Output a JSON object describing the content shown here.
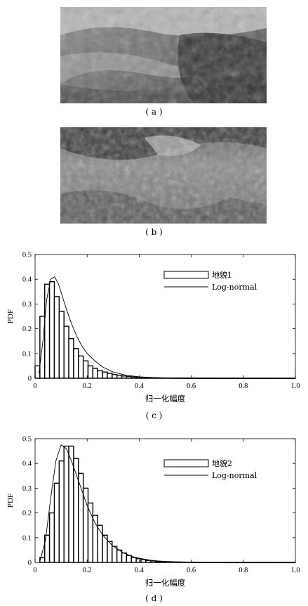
{
  "photos": [
    {
      "caption": "( a )"
    },
    {
      "caption": "( b )"
    }
  ],
  "chart_data": [
    {
      "type": "bar",
      "caption": "( c )",
      "ylabel": "PDF",
      "xlabel": "归一化幅度",
      "xlim": [
        0,
        1.0
      ],
      "ylim": [
        0,
        0.5
      ],
      "xticks": [
        "0",
        "0.2",
        "0.4",
        "0.6",
        "0.8",
        "1.0"
      ],
      "yticks": [
        "0",
        "0.1",
        "0.2",
        "0.3",
        "0.4",
        "0.5"
      ],
      "legend_position": "top-right",
      "series": [
        {
          "name": "地貌1",
          "kind": "histogram",
          "bin_width": 0.0185,
          "values": [
            0.05,
            0.25,
            0.38,
            0.39,
            0.33,
            0.27,
            0.21,
            0.16,
            0.12,
            0.09,
            0.07,
            0.05,
            0.04,
            0.03,
            0.025,
            0.02,
            0.015,
            0.012,
            0.009,
            0.007,
            0.005,
            0.004,
            0.003,
            0.002,
            0.0015,
            0.001,
            0.001,
            0.001,
            0.0008,
            0.0007,
            0.0006,
            0.0005,
            0.0005,
            0.0004,
            0.0004,
            0.0003,
            0.0003,
            0.0003,
            0.0002,
            0.0002,
            0.0002,
            0.0002,
            0.0002,
            0.0001,
            0.0001,
            0.0001,
            0.0001,
            0.0001,
            0.0001,
            0.0001,
            0.0001,
            0.0001,
            0.0001,
            0.0001
          ]
        },
        {
          "name": "Log-normal",
          "kind": "line",
          "x": [
            0.015,
            0.03,
            0.045,
            0.06,
            0.075,
            0.09,
            0.105,
            0.12,
            0.14,
            0.16,
            0.18,
            0.2,
            0.23,
            0.26,
            0.3,
            0.35,
            0.4,
            0.45,
            0.5,
            0.6,
            0.7,
            0.8,
            0.9,
            1.0
          ],
          "y": [
            0.02,
            0.15,
            0.32,
            0.4,
            0.41,
            0.38,
            0.33,
            0.28,
            0.22,
            0.17,
            0.13,
            0.1,
            0.07,
            0.045,
            0.025,
            0.012,
            0.006,
            0.003,
            0.0015,
            0.0005,
            0.0002,
            0.0001,
            0.0,
            0.0
          ]
        }
      ]
    },
    {
      "type": "bar",
      "caption": "( d )",
      "ylabel": "PDF",
      "xlabel": "归一化幅度",
      "xlim": [
        0,
        1.0
      ],
      "ylim": [
        0,
        0.5
      ],
      "xticks": [
        "0",
        "0.2",
        "0.4",
        "0.6",
        "0.8",
        "1.0"
      ],
      "yticks": [
        "0",
        "0.1",
        "0.2",
        "0.3",
        "0.4",
        "0.5"
      ],
      "legend_position": "top-right",
      "series": [
        {
          "name": "地貌2",
          "kind": "histogram",
          "bin_width": 0.0185,
          "values": [
            0.0,
            0.02,
            0.11,
            0.2,
            0.32,
            0.41,
            0.47,
            0.47,
            0.42,
            0.36,
            0.3,
            0.24,
            0.19,
            0.15,
            0.11,
            0.085,
            0.065,
            0.05,
            0.038,
            0.028,
            0.02,
            0.015,
            0.011,
            0.008,
            0.006,
            0.004,
            0.003,
            0.002,
            0.0015,
            0.001,
            0.001,
            0.0008,
            0.0006,
            0.0005,
            0.0004,
            0.0003,
            0.0003,
            0.0002,
            0.0002,
            0.0002,
            0.0001,
            0.0001,
            0.0001,
            0.0001,
            0.0001,
            0.0001,
            0.0001,
            0.0001,
            0.0001,
            0.0001,
            0.0001,
            0.0001,
            0.0001,
            0.0001
          ]
        },
        {
          "name": "Log-normal",
          "kind": "line",
          "x": [
            0.02,
            0.04,
            0.06,
            0.08,
            0.1,
            0.12,
            0.14,
            0.16,
            0.18,
            0.2,
            0.23,
            0.26,
            0.3,
            0.34,
            0.38,
            0.42,
            0.46,
            0.5,
            0.6,
            0.7,
            0.8,
            0.9,
            1.0
          ],
          "y": [
            0.01,
            0.09,
            0.26,
            0.41,
            0.475,
            0.46,
            0.41,
            0.35,
            0.29,
            0.23,
            0.16,
            0.11,
            0.065,
            0.038,
            0.022,
            0.013,
            0.007,
            0.004,
            0.001,
            0.0003,
            0.0001,
            0.0,
            0.0
          ]
        }
      ]
    }
  ]
}
